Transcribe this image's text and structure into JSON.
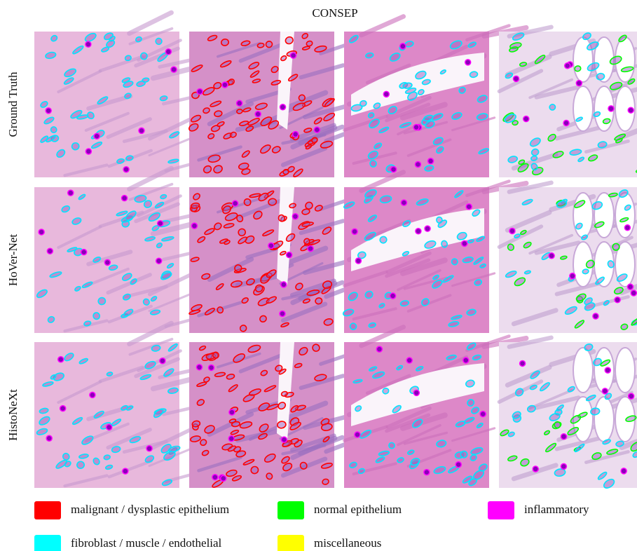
{
  "title": "CONSEP",
  "rows": [
    "Ground Truth",
    "HoVer-Net",
    "HistoNeXt"
  ],
  "legend": [
    {
      "label": "malignant / dysplastic epithelium",
      "color": "#ff0000"
    },
    {
      "label": "normal epithelium",
      "color": "#00ff00"
    },
    {
      "label": "inflammatory",
      "color": "#ff00ff"
    },
    {
      "label": "fibroblast / muscle / endothelial",
      "color": "#00ffff"
    },
    {
      "label": "miscellaneous",
      "color": "#ffff00"
    }
  ]
}
